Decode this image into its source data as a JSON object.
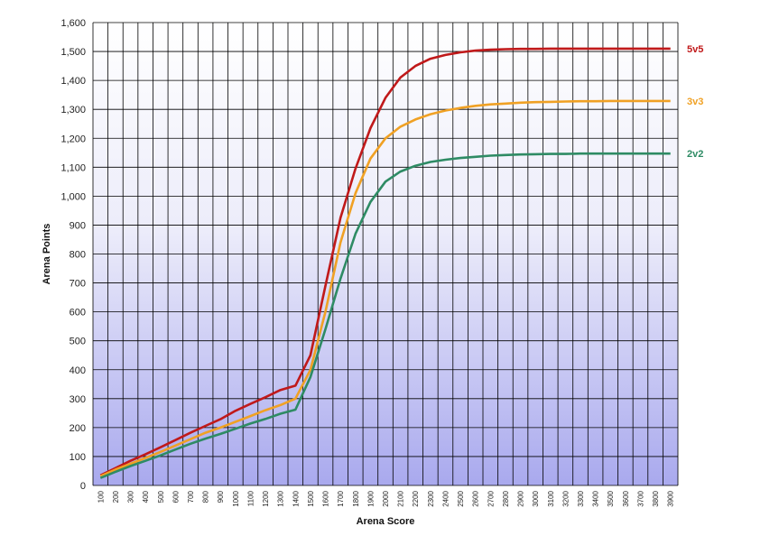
{
  "chart_data": {
    "type": "line",
    "xlabel": "Arena Score",
    "ylabel": "Arena Points",
    "xlim": [
      100,
      3900
    ],
    "ylim": [
      0,
      1600
    ],
    "y_ticks": [
      0,
      100,
      200,
      300,
      400,
      500,
      600,
      700,
      800,
      900,
      1000,
      1100,
      1200,
      1300,
      1400,
      1500,
      1600
    ],
    "y_tick_labels": [
      "0",
      "100",
      "200",
      "300",
      "400",
      "500",
      "600",
      "700",
      "800",
      "900",
      "1,000",
      "1,100",
      "1,200",
      "1,300",
      "1,400",
      "1,500",
      "1,600"
    ],
    "x_tick_labels": [
      "100",
      "200",
      "300",
      "400",
      "500",
      "600",
      "700",
      "800",
      "900",
      "1000",
      "1100",
      "1200",
      "1300",
      "1400",
      "1500",
      "1600",
      "1700",
      "1800",
      "1900",
      "2000",
      "2100",
      "2200",
      "2300",
      "2400",
      "2500",
      "2600",
      "2700",
      "2800",
      "2900",
      "3000",
      "3100",
      "3200",
      "3300",
      "3400",
      "3500",
      "3600",
      "3700",
      "3800",
      "3900"
    ],
    "grid": true,
    "legend": "labels at right end of each series",
    "background": "gradient white (top) to lavender (bottom)",
    "x": [
      100,
      200,
      300,
      400,
      500,
      600,
      700,
      800,
      900,
      1000,
      1100,
      1200,
      1300,
      1400,
      1500,
      1600,
      1700,
      1800,
      1900,
      2000,
      2100,
      2200,
      2300,
      2400,
      2500,
      2600,
      2700,
      2800,
      2900,
      3000,
      3100,
      3200,
      3300,
      3400,
      3500,
      3600,
      3700,
      3800,
      3900
    ],
    "series": [
      {
        "name": "5v5",
        "color": "#c0191a",
        "values": [
          35,
          60,
          85,
          108,
          132,
          157,
          182,
          206,
          229,
          258,
          282,
          305,
          330,
          345,
          450,
          690,
          925,
          1095,
          1235,
          1340,
          1410,
          1450,
          1475,
          1488,
          1497,
          1503,
          1506,
          1508,
          1509,
          1509,
          1510,
          1510,
          1510,
          1510,
          1510,
          1510,
          1510,
          1510,
          1510
        ]
      },
      {
        "name": "3v3",
        "color": "#f0a124",
        "values": [
          32,
          55,
          75,
          95,
          116,
          138,
          160,
          182,
          200,
          220,
          240,
          260,
          278,
          300,
          400,
          600,
          840,
          1010,
          1130,
          1200,
          1240,
          1265,
          1283,
          1296,
          1305,
          1312,
          1317,
          1320,
          1323,
          1325,
          1326,
          1327,
          1328,
          1328,
          1329,
          1329,
          1329,
          1329,
          1329
        ]
      },
      {
        "name": "2v2",
        "color": "#2e8b64",
        "values": [
          26,
          47,
          67,
          85,
          104,
          124,
          144,
          162,
          178,
          196,
          214,
          230,
          248,
          262,
          375,
          540,
          715,
          870,
          980,
          1050,
          1085,
          1105,
          1118,
          1126,
          1132,
          1136,
          1140,
          1142,
          1144,
          1145,
          1146,
          1146,
          1147,
          1147,
          1147,
          1147,
          1147,
          1147,
          1147
        ]
      }
    ]
  }
}
